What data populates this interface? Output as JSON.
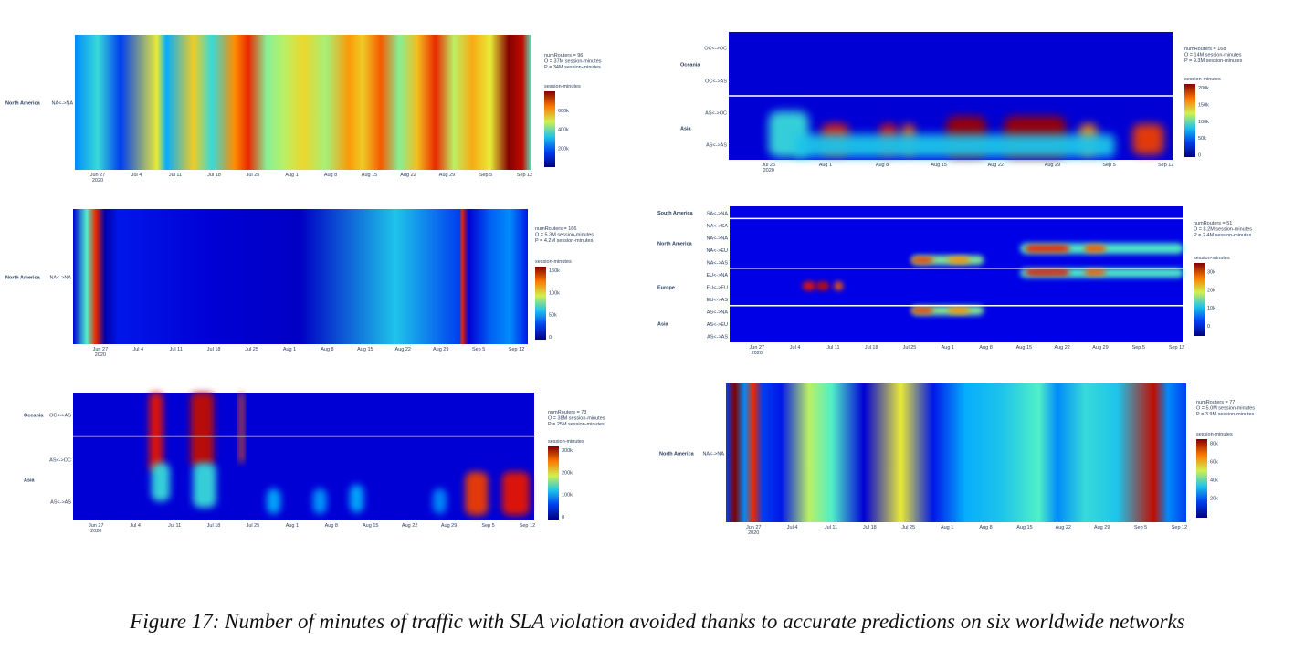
{
  "caption": "Figure 17: Number of minutes of traffic with SLA violation avoided thanks to accurate predictions on six worldwide networks",
  "chart_data": [
    {
      "type": "heatmap",
      "stats": [
        "numRouters = 96",
        "O = 37M session-minutes",
        "P = 34M session-minutes"
      ],
      "colorbar": {
        "title": "session-minutes",
        "ticks": [
          "600k",
          "400k",
          "200k"
        ]
      },
      "x_ticks": [
        "Jun 27",
        "Jul 4",
        "Jul 11",
        "Jul 18",
        "Jul 25",
        "Aug 1",
        "Aug 8",
        "Aug 15",
        "Aug 22",
        "Aug 29",
        "Sep 5",
        "Sep 12"
      ],
      "year_label": "2020",
      "groups": [
        "North America"
      ],
      "rows": [
        "NA<->NA"
      ],
      "bands": [
        [
          0.0,
          0.3
        ],
        [
          0.05,
          0.45
        ],
        [
          0.1,
          0.2
        ],
        [
          0.18,
          0.65
        ],
        [
          0.2,
          0.35
        ],
        [
          0.26,
          0.7
        ],
        [
          0.3,
          0.45
        ],
        [
          0.35,
          0.8
        ],
        [
          0.38,
          0.9
        ],
        [
          0.42,
          0.55
        ],
        [
          0.46,
          0.6
        ],
        [
          0.5,
          0.68
        ],
        [
          0.55,
          0.58
        ],
        [
          0.6,
          0.78
        ],
        [
          0.63,
          0.7
        ],
        [
          0.67,
          0.85
        ],
        [
          0.71,
          0.55
        ],
        [
          0.75,
          0.72
        ],
        [
          0.79,
          0.9
        ],
        [
          0.83,
          0.6
        ],
        [
          0.87,
          0.75
        ],
        [
          0.91,
          0.65
        ],
        [
          0.95,
          1.0
        ],
        [
          0.98,
          0.95
        ],
        [
          1.0,
          0.5
        ]
      ]
    },
    {
      "type": "heatmap",
      "stats": [
        "numRouters = 168",
        "O = 14M session-minutes",
        "P = 9.3M session-minutes"
      ],
      "colorbar": {
        "title": "session-minutes",
        "ticks": [
          "200k",
          "150k",
          "100k",
          "50k",
          "0"
        ]
      },
      "x_ticks": [
        "Jul 25",
        "Aug 1",
        "Aug 8",
        "Aug 15",
        "Aug 22",
        "Aug 29",
        "Sep 5",
        "Sep 12"
      ],
      "year_label": "2020",
      "groups": [
        "Oceania",
        "Asia"
      ],
      "rows": [
        "OC<->OC",
        "OC<->AS",
        "AS<->OC",
        "AS<->AS"
      ]
    },
    {
      "type": "heatmap",
      "stats": [
        "numRouters = 166",
        "O = 5.3M session-minutes",
        "P = 4.2M session-minutes"
      ],
      "colorbar": {
        "title": "session-minutes",
        "ticks": [
          "150k",
          "100k",
          "50k",
          "0"
        ]
      },
      "x_ticks": [
        "Jun 27",
        "Jul 4",
        "Jul 11",
        "Jul 18",
        "Jul 25",
        "Aug 1",
        "Aug 8",
        "Aug 15",
        "Aug 22",
        "Aug 29",
        "Sep 5",
        "Sep 12"
      ],
      "year_label": "2020",
      "groups": [
        "North America"
      ],
      "rows": [
        "NA<->NA"
      ],
      "bands": [
        [
          0.0,
          0.1
        ],
        [
          0.03,
          0.5
        ],
        [
          0.05,
          0.9
        ],
        [
          0.07,
          0.05
        ],
        [
          0.1,
          0.15
        ],
        [
          0.3,
          0.1
        ],
        [
          0.5,
          0.08
        ],
        [
          0.71,
          0.4
        ],
        [
          0.85,
          0.2
        ],
        [
          0.855,
          0.9
        ],
        [
          0.87,
          0.1
        ],
        [
          0.92,
          0.25
        ],
        [
          0.96,
          0.3
        ],
        [
          1.0,
          0.15
        ]
      ]
    },
    {
      "type": "heatmap",
      "stats": [
        "numRouters = 51",
        "O = 8.2M session-minutes",
        "P = 2.4M session-minutes"
      ],
      "colorbar": {
        "title": "session-minutes",
        "ticks": [
          "30k",
          "20k",
          "10k",
          "0"
        ]
      },
      "x_ticks": [
        "Jun 27",
        "Jul 4",
        "Jul 11",
        "Jul 18",
        "Jul 25",
        "Aug 1",
        "Aug 8",
        "Aug 15",
        "Aug 22",
        "Aug 29",
        "Sep 5",
        "Sep 12"
      ],
      "year_label": "2020",
      "groups": [
        "South America",
        "North America",
        "Europe",
        "Asia"
      ],
      "rows": [
        "SA<->NA",
        "NA<->SA",
        "NA<->NA",
        "NA<->EU",
        "NA<->AS",
        "EU<->NA",
        "EU<->EU",
        "EU<->AS",
        "AS<->NA",
        "AS<->EU",
        "AS<->AS"
      ]
    },
    {
      "type": "heatmap",
      "stats": [
        "numRouters = 73",
        "O = 38M session-minutes",
        "P = 25M session-minutes"
      ],
      "colorbar": {
        "title": "session-minutes",
        "ticks": [
          "300k",
          "200k",
          "100k",
          "0"
        ]
      },
      "x_ticks": [
        "Jun 27",
        "Jul 4",
        "Jul 11",
        "Jul 18",
        "Jul 25",
        "Aug 1",
        "Aug 8",
        "Aug 15",
        "Aug 22",
        "Aug 29",
        "Sep 5",
        "Sep 12"
      ],
      "year_label": "2020",
      "groups": [
        "Oceania",
        "Asia"
      ],
      "rows": [
        "OC<->AS",
        "AS<->OC",
        "AS<->AS"
      ]
    },
    {
      "type": "heatmap",
      "stats": [
        "numRouters = 77",
        "O = 5.0M session-minutes",
        "P = 3.9M session-minutes"
      ],
      "colorbar": {
        "title": "session-minutes",
        "ticks": [
          "80k",
          "60k",
          "40k",
          "20k"
        ]
      },
      "x_ticks": [
        "Jun 27",
        "Jul 4",
        "Jul 11",
        "Jul 18",
        "Jul 25",
        "Aug 1",
        "Aug 8",
        "Aug 15",
        "Aug 22",
        "Aug 29",
        "Sep 5",
        "Sep 12"
      ],
      "year_label": "2020",
      "groups": [
        "North America"
      ],
      "rows": [
        "NA<->NA"
      ],
      "bands": [
        [
          0.0,
          0.2
        ],
        [
          0.02,
          1.0
        ],
        [
          0.04,
          0.3
        ],
        [
          0.06,
          0.9
        ],
        [
          0.08,
          0.2
        ],
        [
          0.12,
          0.15
        ],
        [
          0.18,
          0.6
        ],
        [
          0.23,
          0.5
        ],
        [
          0.3,
          0.1
        ],
        [
          0.38,
          0.65
        ],
        [
          0.45,
          0.15
        ],
        [
          0.52,
          0.35
        ],
        [
          0.6,
          0.4
        ],
        [
          0.68,
          0.5
        ],
        [
          0.72,
          0.3
        ],
        [
          0.78,
          0.45
        ],
        [
          0.85,
          0.4
        ],
        [
          0.93,
          0.95
        ],
        [
          0.96,
          0.3
        ],
        [
          1.0,
          0.2
        ]
      ]
    }
  ]
}
